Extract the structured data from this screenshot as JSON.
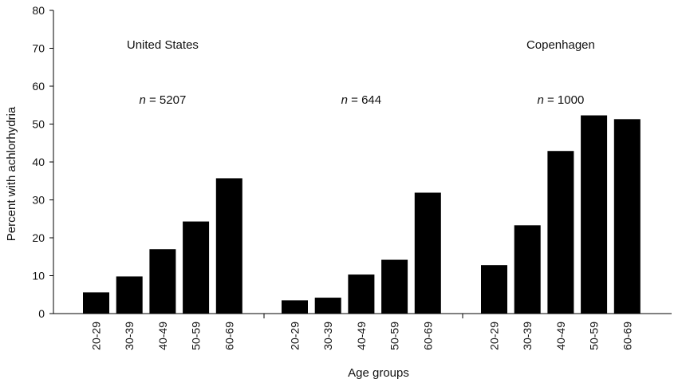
{
  "chart_data": {
    "type": "bar",
    "xlabel": "Age groups",
    "ylabel": "Percent with achlorhydria",
    "ylim": [
      0,
      80
    ],
    "yticks": [
      0,
      10,
      20,
      30,
      40,
      50,
      60,
      70,
      80
    ],
    "bar_color": "#000000",
    "groups": [
      {
        "name": "United States",
        "n_symbol": "n",
        "n_text": " = 5207",
        "categories": [
          "20-29",
          "30-39",
          "40-49",
          "50-59",
          "60-69"
        ],
        "values": [
          5.6,
          9.8,
          17.0,
          24.3,
          35.7
        ]
      },
      {
        "name": "",
        "n_symbol": "n",
        "n_text": " = 644",
        "categories": [
          "20-29",
          "30-39",
          "40-49",
          "50-59",
          "60-69"
        ],
        "values": [
          3.5,
          4.2,
          10.3,
          14.2,
          31.9
        ]
      },
      {
        "name": "Copenhagen",
        "n_symbol": "n",
        "n_text": " = 1000",
        "categories": [
          "20-29",
          "30-39",
          "40-49",
          "50-59",
          "60-69"
        ],
        "values": [
          12.8,
          23.3,
          42.9,
          52.3,
          51.3
        ]
      }
    ]
  }
}
